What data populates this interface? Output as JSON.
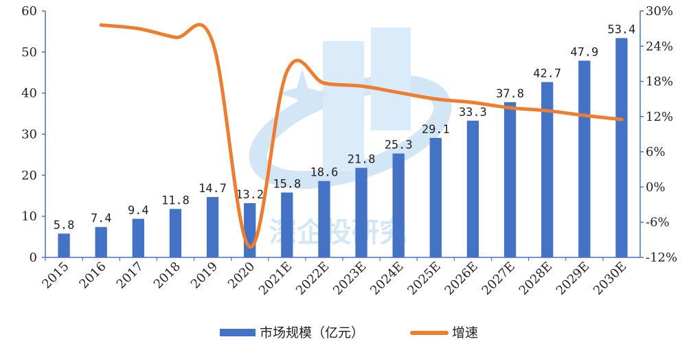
{
  "chart_data": {
    "type": "bar+line",
    "categories": [
      "2015",
      "2016",
      "2017",
      "2018",
      "2019",
      "2020",
      "2021E",
      "2022E",
      "2023E",
      "2024E",
      "2025E",
      "2026E",
      "2027E",
      "2028E",
      "2029E",
      "2030E"
    ],
    "series": [
      {
        "name": "市场规模（亿元）",
        "type": "bar",
        "axis": "left",
        "color": "#4472C4",
        "values": [
          5.8,
          7.4,
          9.4,
          11.8,
          14.7,
          13.2,
          15.8,
          18.6,
          21.8,
          25.3,
          29.1,
          33.3,
          37.8,
          42.7,
          47.9,
          53.4
        ],
        "labels": [
          "5.8",
          "7.4",
          "9.4",
          "11.8",
          "14.7",
          "13.2",
          "15.8",
          "18.6",
          "21.8",
          "25.3",
          "29.1",
          "33.3",
          "37.8",
          "42.7",
          "47.9",
          "53.4"
        ]
      },
      {
        "name": "增速",
        "type": "line",
        "axis": "right",
        "color": "#ED7D31",
        "values": [
          null,
          27.6,
          27.0,
          25.5,
          24.7,
          -10.2,
          19.7,
          17.7,
          17.2,
          16.1,
          15.0,
          14.4,
          13.5,
          13.0,
          12.2,
          11.5
        ]
      }
    ],
    "y_left": {
      "min": 0,
      "max": 60,
      "ticks": [
        "0",
        "10",
        "20",
        "30",
        "40",
        "50",
        "60"
      ]
    },
    "y_right": {
      "min": -12,
      "max": 30,
      "ticks": [
        "-12%",
        "-6%",
        "0%",
        "6%",
        "12%",
        "18%",
        "24%",
        "30%"
      ]
    },
    "legend_position": "bottom",
    "watermark_text": "深企投研究"
  }
}
